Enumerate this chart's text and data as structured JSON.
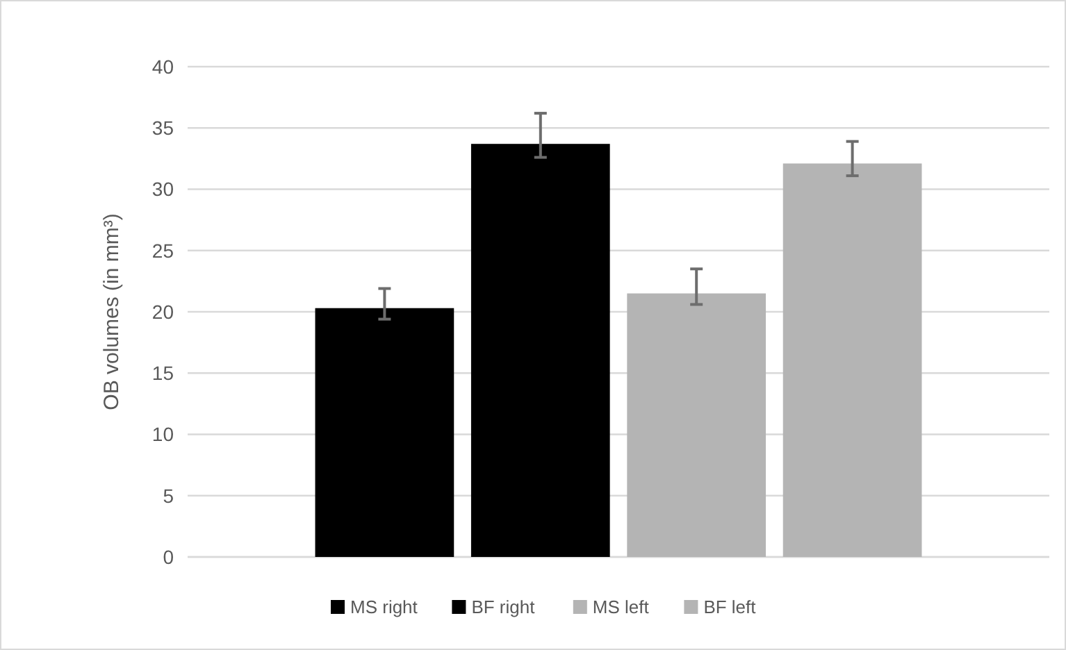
{
  "chart_data": {
    "type": "bar",
    "ylabel": "OB volumes (in mm³)",
    "categories": [
      null
    ],
    "series": [
      {
        "name": "MS right",
        "color": "#000000",
        "values": [
          20.3
        ],
        "errors": [
          [
            19.4,
            21.9
          ]
        ]
      },
      {
        "name": "BF right",
        "color": "#000000",
        "values": [
          33.7
        ],
        "errors": [
          [
            32.6,
            36.2
          ]
        ]
      },
      {
        "name": "MS left",
        "color": "#b4b4b4",
        "values": [
          21.5
        ],
        "errors": [
          [
            20.6,
            23.5
          ]
        ]
      },
      {
        "name": "BF left",
        "color": "#b4b4b4",
        "values": [
          32.1
        ],
        "errors": [
          [
            31.1,
            33.9
          ]
        ]
      }
    ],
    "ylim": [
      0,
      40
    ],
    "yticks": [
      0,
      5,
      10,
      15,
      20,
      25,
      30,
      35,
      40
    ],
    "grid": "y",
    "legend": "bottom",
    "tick_labels": "y"
  }
}
